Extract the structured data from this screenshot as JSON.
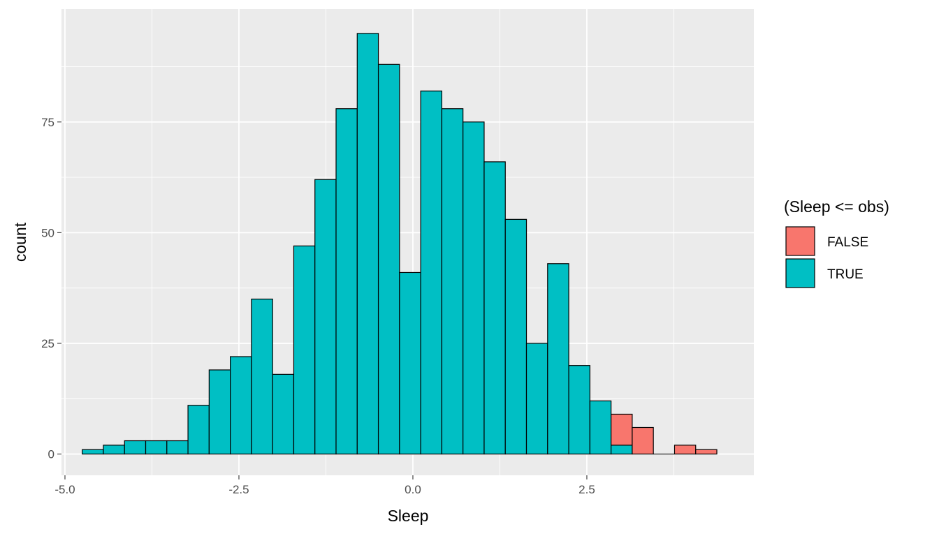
{
  "chart_data": {
    "type": "bar",
    "title": "",
    "xlabel": "Sleep",
    "ylabel": "count",
    "xlim": [
      -5.05,
      4.9
    ],
    "ylim": [
      -4.8,
      100.5
    ],
    "x_ticks": [
      -5.0,
      -2.5,
      0.0,
      2.5
    ],
    "x_tick_labels": [
      "-5.0",
      "-2.5",
      "0.0",
      "2.5"
    ],
    "y_ticks": [
      0,
      25,
      50,
      75
    ],
    "y_tick_labels": [
      "0",
      "25",
      "50",
      "75"
    ],
    "grid": true,
    "panel_background": "#ebebeb",
    "bar_outline": "#000000",
    "bin_width": 0.304,
    "bin_centers": [
      -4.6,
      -4.296,
      -3.992,
      -3.688,
      -3.384,
      -3.08,
      -2.776,
      -2.472,
      -2.168,
      -1.864,
      -1.56,
      -1.256,
      -0.952,
      -0.648,
      -0.344,
      -0.04,
      0.264,
      0.568,
      0.872,
      1.176,
      1.48,
      1.784,
      2.088,
      2.392,
      2.696,
      3.0,
      3.304,
      3.608,
      3.912,
      4.216
    ],
    "series": [
      {
        "name": "FALSE",
        "color": "#f8766d",
        "values": [
          0,
          0,
          0,
          0,
          0,
          0,
          0,
          0,
          0,
          0,
          0,
          0,
          0,
          0,
          0,
          0,
          0,
          0,
          0,
          0,
          0,
          0,
          0,
          0,
          0,
          7,
          6,
          0,
          2,
          1
        ]
      },
      {
        "name": "TRUE",
        "color": "#00bfc4",
        "values": [
          1,
          2,
          3,
          3,
          3,
          11,
          19,
          22,
          35,
          18,
          47,
          62,
          78,
          95,
          88,
          41,
          82,
          78,
          75,
          66,
          53,
          25,
          43,
          20,
          12,
          2,
          0,
          0,
          0,
          0
        ]
      }
    ],
    "legend": {
      "title": "(Sleep <= obs)",
      "placement": "right",
      "entries": [
        "FALSE",
        "TRUE"
      ]
    }
  }
}
